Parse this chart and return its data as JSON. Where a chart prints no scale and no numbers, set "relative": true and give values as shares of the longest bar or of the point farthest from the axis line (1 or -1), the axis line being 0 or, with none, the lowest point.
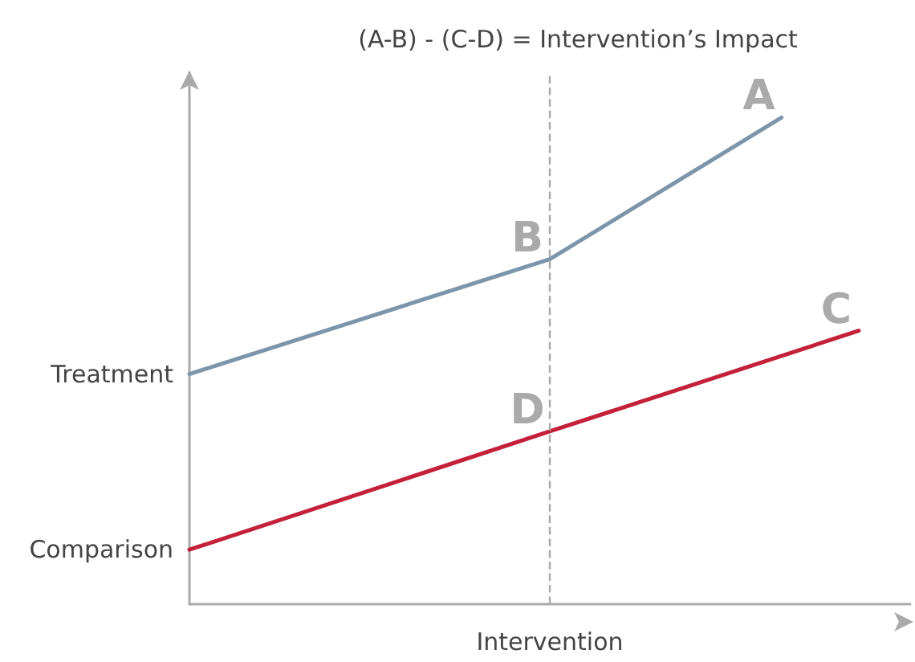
{
  "chart_data": {
    "type": "line",
    "title": "(A-B) - (C-D) = Intervention’s Impact",
    "xlabel": "Intervention",
    "relative": true,
    "categories": [
      null,
      null,
      null,
      null,
      null,
      null,
      null,
      null,
      null,
      null,
      null,
      null,
      null,
      null,
      null,
      null,
      null,
      null,
      null,
      null,
      null,
      null,
      null,
      null,
      null,
      null,
      null,
      null,
      null
    ],
    "grid": false,
    "legend": false,
    "marker": "none",
    "line_style": "solid",
    "series": [
      {
        "name": "Treatment",
        "color": "#7d95aa",
        "values": [
          0.473,
          null,
          null,
          null,
          null,
          null,
          null,
          null,
          null,
          null,
          null,
          null,
          null,
          null,
          0.709,
          null,
          null,
          null,
          null,
          null,
          null,
          null,
          null,
          1,
          null,
          null,
          null,
          null,
          null
        ]
      },
      {
        "name": "Comparison",
        "color": "#c4203a",
        "values": [
          0.112,
          null,
          null,
          null,
          null,
          null,
          null,
          null,
          null,
          null,
          null,
          null,
          null,
          null,
          0.355,
          null,
          null,
          null,
          null,
          null,
          null,
          null,
          null,
          null,
          null,
          null,
          0.562,
          null,
          null
        ]
      }
    ],
    "annotations": [
      "A",
      "B",
      "C",
      "D"
    ]
  }
}
